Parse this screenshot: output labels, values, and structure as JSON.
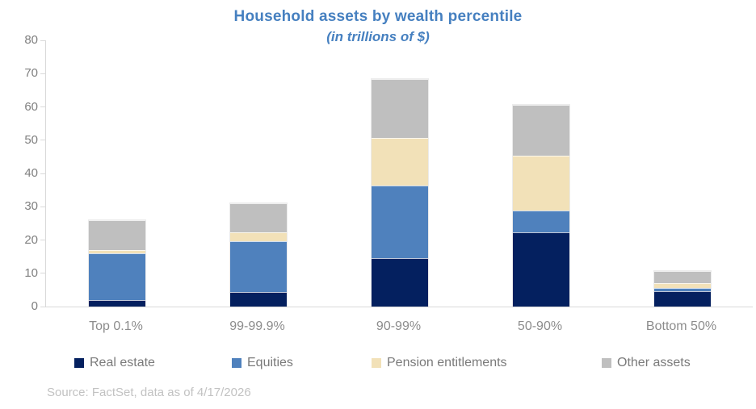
{
  "title": "Household assets by wealth percentile",
  "subtitle": "(in trillions of $)",
  "source": "Source: FactSet, data as of 4/17/2026",
  "colors": {
    "title_blue": "#4680c0",
    "real_estate": "#04205f",
    "equities": "#4f81bd",
    "pension_entitlements": "#f2e1b8",
    "other_assets": "#bfbfbf",
    "axis_line": "#d9d9d9",
    "axis_text": "#7f7f7f",
    "source_text": "#c2c2c2"
  },
  "chart_data": {
    "type": "bar",
    "stacked": true,
    "title": "Household assets by wealth percentile",
    "subtitle": "(in trillions of $)",
    "xlabel": "",
    "ylabel": "",
    "ylim": [
      0,
      80
    ],
    "y_ticks": [
      0,
      10,
      20,
      30,
      40,
      50,
      60,
      70,
      80
    ],
    "grid": false,
    "legend_position": "bottom",
    "categories": [
      "Top 0.1%",
      "99-99.9%",
      "90-99%",
      "50-90%",
      "Bottom 50%"
    ],
    "series": [
      {
        "name": "Real estate",
        "color": "#04205f",
        "values": [
          2.0,
          4.4,
          14.5,
          22.4,
          4.7
        ]
      },
      {
        "name": "Equities",
        "color": "#4f81bd",
        "values": [
          14.0,
          15.2,
          21.9,
          6.5,
          0.8
        ]
      },
      {
        "name": "Pension entitlements",
        "color": "#f2e1b8",
        "values": [
          0.9,
          2.6,
          14.3,
          16.4,
          1.5
        ]
      },
      {
        "name": "Other assets",
        "color": "#bfbfbf",
        "values": [
          9.0,
          8.9,
          17.7,
          15.3,
          3.7
        ]
      }
    ],
    "totals": [
      25.9,
      31.1,
      68.4,
      60.6,
      10.7
    ]
  }
}
